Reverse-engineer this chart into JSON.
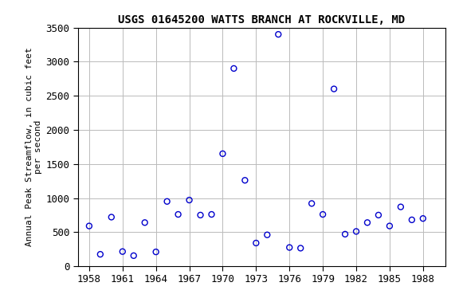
{
  "title": "USGS 01645200 WATTS BRANCH AT ROCKVILLE, MD",
  "ylabel": "Annual Peak Streamflow, in cubic feet\nper second",
  "years": [
    1958,
    1959,
    1960,
    1961,
    1962,
    1963,
    1964,
    1965,
    1966,
    1967,
    1968,
    1969,
    1970,
    1971,
    1972,
    1973,
    1974,
    1975,
    1976,
    1977,
    1978,
    1979,
    1980,
    1981,
    1982,
    1983,
    1984,
    1985,
    1986,
    1987,
    1988
  ],
  "values": [
    590,
    175,
    720,
    215,
    155,
    640,
    210,
    950,
    760,
    970,
    750,
    760,
    1650,
    2900,
    1260,
    340,
    460,
    3400,
    275,
    265,
    920,
    760,
    2600,
    470,
    510,
    640,
    750,
    590,
    870,
    680,
    700
  ],
  "xlim": [
    1957,
    1990
  ],
  "ylim": [
    0,
    3500
  ],
  "xticks": [
    1958,
    1961,
    1964,
    1967,
    1970,
    1973,
    1976,
    1979,
    1982,
    1985,
    1988
  ],
  "yticks": [
    0,
    500,
    1000,
    1500,
    2000,
    2500,
    3000,
    3500
  ],
  "marker_color": "#0000CC",
  "marker_size": 5,
  "grid_color": "#bbbbbb",
  "bg_color": "#ffffff",
  "title_fontsize": 10,
  "label_fontsize": 8,
  "tick_fontsize": 9
}
